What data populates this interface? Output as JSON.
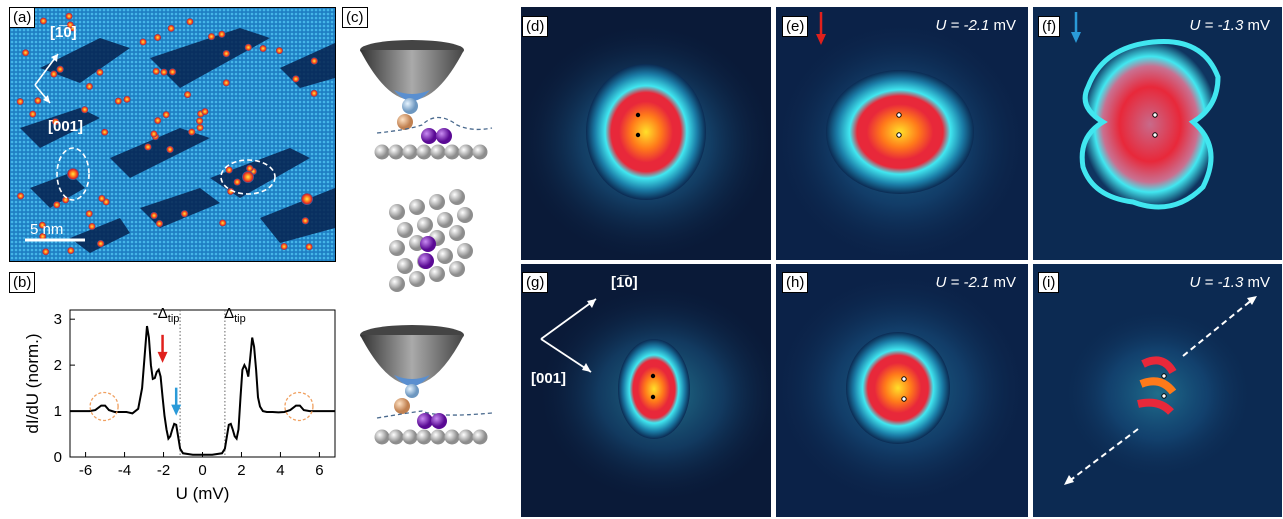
{
  "panels": {
    "a": {
      "label": "(a)",
      "dir1": "[1̅0]",
      "dir2": "[001]",
      "scalebar": "5 nm"
    },
    "b": {
      "label": "(b)"
    },
    "c": {
      "label": "(c)"
    },
    "d": {
      "label": "(d)"
    },
    "e": {
      "label": "(e)",
      "bias_var": "U",
      "bias_value": "= -2.1",
      "bias_unit": "mV",
      "arrow_color": "#e0201c"
    },
    "f": {
      "label": "(f)",
      "bias_var": "U",
      "bias_value": "= -1.3",
      "bias_unit": "mV",
      "arrow_color": "#2a9ad8"
    },
    "g": {
      "label": "(g)",
      "dir1": "[1̅0]",
      "dir2": "[001]"
    },
    "h": {
      "label": "(h)",
      "bias_var": "U",
      "bias_value": "= -2.1",
      "bias_unit": "mV"
    },
    "i": {
      "label": "(i)",
      "bias_var": "U",
      "bias_value": "= -1.3",
      "bias_unit": "mV"
    }
  },
  "chart_data": {
    "type": "line",
    "xlabel": "U (mV)",
    "ylabel": "dI/dU (norm.)",
    "xlim": [
      -6.8,
      6.8
    ],
    "ylim": [
      0,
      3.2
    ],
    "xticks": [
      "-6",
      "-4",
      "-2",
      "0",
      "2",
      "4",
      "6"
    ],
    "yticks": [
      "0",
      "1",
      "2",
      "3"
    ],
    "annotations": [
      "-Δtip",
      "Δtip"
    ],
    "vlines": [
      -1.15,
      1.15
    ],
    "series": [
      {
        "x": [
          -6.8,
          -6.2,
          -5.8,
          -5.5,
          -5.2,
          -5.0,
          -4.8,
          -4.5,
          -4.2,
          -3.9,
          -3.6,
          -3.3,
          -3.1,
          -2.95,
          -2.85,
          -2.75,
          -2.65,
          -2.55,
          -2.45,
          -2.35,
          -2.25,
          -2.15,
          -2.05,
          -1.95,
          -1.85,
          -1.75,
          -1.65,
          -1.55,
          -1.45,
          -1.35,
          -1.25,
          -1.15,
          -1.0,
          -0.5,
          0,
          0.5,
          1.0,
          1.15,
          1.25,
          1.35,
          1.45,
          1.55,
          1.65,
          1.75,
          1.85,
          1.95,
          2.05,
          2.15,
          2.25,
          2.35,
          2.45,
          2.55,
          2.65,
          2.75,
          2.85,
          2.95,
          3.1,
          3.3,
          3.6,
          3.9,
          4.2,
          4.5,
          4.8,
          5.0,
          5.2,
          5.5,
          5.8,
          6.2,
          6.8
        ],
        "y": [
          1.0,
          1.0,
          1.0,
          1.02,
          1.12,
          1.12,
          1.02,
          0.98,
          0.98,
          0.98,
          0.95,
          1.05,
          1.5,
          2.3,
          2.85,
          2.6,
          2.0,
          1.7,
          1.72,
          1.85,
          1.9,
          1.75,
          1.3,
          0.9,
          0.6,
          0.4,
          0.45,
          0.6,
          0.72,
          0.7,
          0.45,
          0.18,
          0.08,
          0.05,
          0.05,
          0.05,
          0.08,
          0.18,
          0.45,
          0.7,
          0.72,
          0.6,
          0.45,
          0.4,
          0.6,
          1.3,
          1.9,
          2.0,
          1.92,
          1.75,
          2.15,
          2.6,
          2.4,
          1.9,
          1.3,
          1.1,
          1.0,
          0.98,
          0.98,
          0.97,
          0.98,
          1.02,
          1.12,
          1.12,
          1.02,
          1.0,
          1.0,
          1.0,
          1.0
        ]
      }
    ],
    "arrows": [
      {
        "x": -2.05,
        "color": "#e0201c"
      },
      {
        "x": -1.35,
        "color": "#2a9ad8"
      }
    ]
  },
  "colors": {
    "cyan": "#41e7f0",
    "navy": "#0b1b3a",
    "red": "#e81f33",
    "yellow": "#ffd21a",
    "purple": "#7a14b8"
  }
}
